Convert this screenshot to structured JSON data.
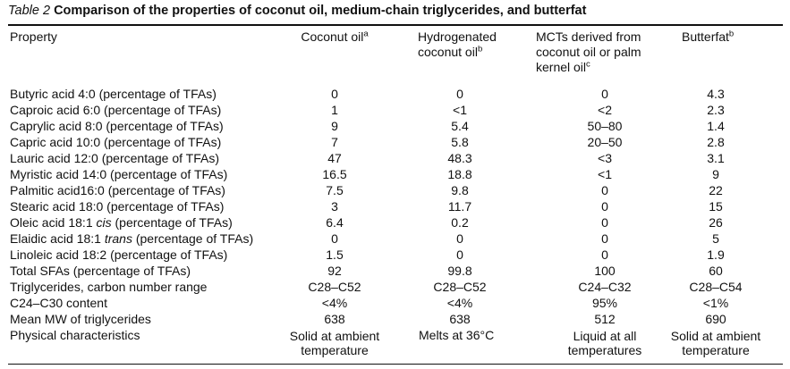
{
  "caption": {
    "label": "Table 2",
    "title": "Comparison of the properties of coconut oil, medium-chain triglycerides, and butterfat"
  },
  "headers": {
    "property": "Property",
    "coconut": {
      "text": "Coconut oil",
      "sup": "a"
    },
    "hydro": {
      "line1": "Hydrogenated",
      "line2": "coconut oil",
      "sup": "b"
    },
    "mct": {
      "line1": "MCTs derived from",
      "line2": "coconut oil or palm",
      "line3": "kernel oil",
      "sup": "c"
    },
    "butter": {
      "text": "Butterfat",
      "sup": "b"
    }
  },
  "rows": [
    {
      "property": "Butyric acid 4:0 (percentage of TFAs)",
      "coconut": "0",
      "hydro": "0",
      "mct": "0",
      "butter": "4.3"
    },
    {
      "property": "Caproic acid 6:0 (percentage of TFAs)",
      "coconut": "1",
      "hydro": "<1",
      "mct": "<2",
      "butter": "2.3"
    },
    {
      "property": "Caprylic acid 8:0 (percentage of TFAs)",
      "coconut": "9",
      "hydro": "5.4",
      "mct": "50–80",
      "butter": "1.4"
    },
    {
      "property": "Capric acid 10:0 (percentage of TFAs)",
      "coconut": "7",
      "hydro": "5.8",
      "mct": "20–50",
      "butter": "2.8"
    },
    {
      "property": "Lauric acid 12:0 (percentage of TFAs)",
      "coconut": "47",
      "hydro": "48.3",
      "mct": "<3",
      "butter": "3.1"
    },
    {
      "property": "Myristic acid 14:0 (percentage of TFAs)",
      "coconut": "16.5",
      "hydro": "18.8",
      "mct": "<1",
      "butter": "9"
    },
    {
      "property": "Palmitic acid16:0 (percentage of TFAs)",
      "coconut": "7.5",
      "hydro": "9.8",
      "mct": "0",
      "butter": "22"
    },
    {
      "property": "Stearic acid 18:0 (percentage of TFAs)",
      "coconut": "3",
      "hydro": "11.7",
      "mct": "0",
      "butter": "15"
    },
    {
      "property_pre": "Oleic acid 18:1 ",
      "property_em": "cis",
      "property_post": " (percentage of TFAs)",
      "coconut": "6.4",
      "hydro": "0.2",
      "mct": "0",
      "butter": "26"
    },
    {
      "property_pre": "Elaidic acid 18:1 ",
      "property_em": "trans",
      "property_post": " (percentage of TFAs)",
      "coconut": "0",
      "hydro": "0",
      "mct": "0",
      "butter": "5"
    },
    {
      "property": "Linoleic acid 18:2 (percentage of TFAs)",
      "coconut": "1.5",
      "hydro": "0",
      "mct": "0",
      "butter": "1.9"
    },
    {
      "property": "Total SFAs (percentage of TFAs)",
      "coconut": "92",
      "hydro": "99.8",
      "mct": "100",
      "butter": "60"
    },
    {
      "property": "Triglycerides, carbon number range",
      "coconut": "C28–C52",
      "hydro": "C28–C52",
      "mct": "C24–C32",
      "butter": "C28–C54"
    },
    {
      "property": "C24–C30 content",
      "coconut": "<4%",
      "hydro": "<4%",
      "mct": "95%",
      "butter": "<1%"
    },
    {
      "property": "Mean MW of triglycerides",
      "coconut": "638",
      "hydro": "638",
      "mct": "512",
      "butter": "690"
    }
  ],
  "physical": {
    "property": "Physical characteristics",
    "coconut_l1": "Solid at ambient",
    "coconut_l2": "temperature",
    "hydro": "Melts at 36°C",
    "mct_l1": "Liquid at all",
    "mct_l2": "temperatures",
    "butter_l1": "Solid at ambient",
    "butter_l2": "temperature"
  }
}
